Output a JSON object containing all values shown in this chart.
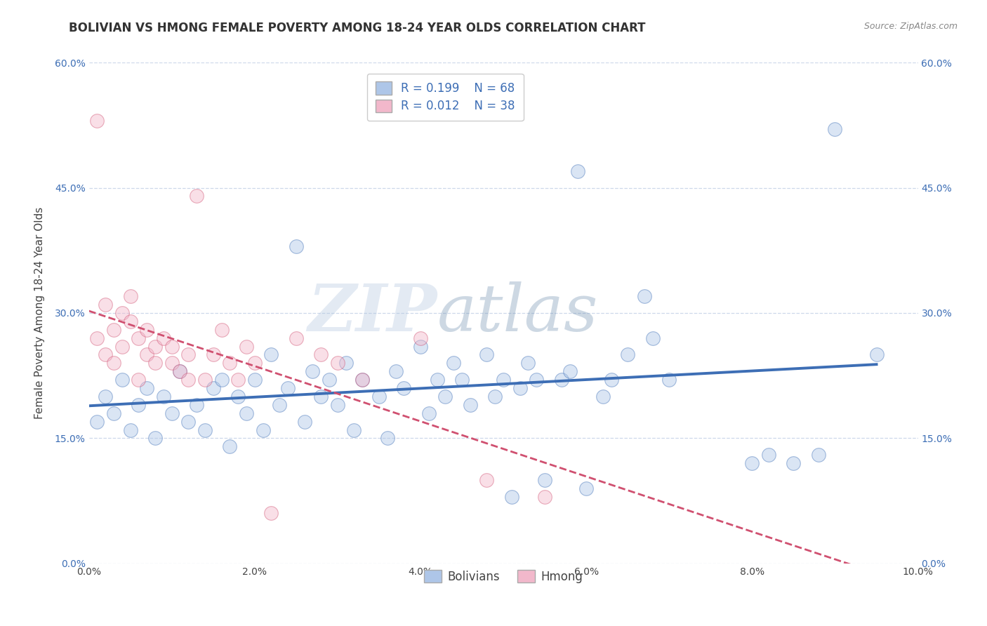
{
  "title": "BOLIVIAN VS HMONG FEMALE POVERTY AMONG 18-24 YEAR OLDS CORRELATION CHART",
  "source_text": "Source: ZipAtlas.com",
  "ylabel": "Female Poverty Among 18-24 Year Olds",
  "xlabel": "",
  "xlim": [
    0.0,
    0.1
  ],
  "ylim": [
    0.0,
    0.6
  ],
  "yticks": [
    0.0,
    0.15,
    0.3,
    0.45,
    0.6
  ],
  "xticks": [
    0.0,
    0.02,
    0.04,
    0.06,
    0.08,
    0.1
  ],
  "xtick_labels": [
    "0.0%",
    "2.0%",
    "4.0%",
    "6.0%",
    "8.0%",
    "10.0%"
  ],
  "ytick_labels": [
    "0.0%",
    "15.0%",
    "30.0%",
    "45.0%",
    "60.0%"
  ],
  "watermark_zip": "ZIP",
  "watermark_atlas": "atlas",
  "bolivians_color": "#aec6e8",
  "hmong_color": "#f2b8cb",
  "bolivians_line_color": "#3d6eb5",
  "hmong_line_color": "#d05070",
  "legend_R_bolivians": "R = 0.199",
  "legend_N_bolivians": "N = 68",
  "legend_R_hmong": "R = 0.012",
  "legend_N_hmong": "N = 38",
  "bolivians_R": 0.199,
  "hmong_R": 0.012,
  "bolivians_x": [
    0.001,
    0.002,
    0.003,
    0.004,
    0.005,
    0.006,
    0.007,
    0.008,
    0.009,
    0.01,
    0.011,
    0.012,
    0.013,
    0.014,
    0.015,
    0.016,
    0.017,
    0.018,
    0.019,
    0.02,
    0.021,
    0.022,
    0.023,
    0.024,
    0.025,
    0.026,
    0.027,
    0.028,
    0.029,
    0.03,
    0.031,
    0.032,
    0.033,
    0.035,
    0.036,
    0.037,
    0.038,
    0.04,
    0.041,
    0.042,
    0.043,
    0.044,
    0.045,
    0.046,
    0.048,
    0.049,
    0.05,
    0.051,
    0.052,
    0.053,
    0.054,
    0.055,
    0.057,
    0.058,
    0.059,
    0.06,
    0.062,
    0.063,
    0.065,
    0.067,
    0.068,
    0.07,
    0.08,
    0.082,
    0.085,
    0.088,
    0.09,
    0.095
  ],
  "bolivians_y": [
    0.17,
    0.2,
    0.18,
    0.22,
    0.16,
    0.19,
    0.21,
    0.15,
    0.2,
    0.18,
    0.23,
    0.17,
    0.19,
    0.16,
    0.21,
    0.22,
    0.14,
    0.2,
    0.18,
    0.22,
    0.16,
    0.25,
    0.19,
    0.21,
    0.38,
    0.17,
    0.23,
    0.2,
    0.22,
    0.19,
    0.24,
    0.16,
    0.22,
    0.2,
    0.15,
    0.23,
    0.21,
    0.26,
    0.18,
    0.22,
    0.2,
    0.24,
    0.22,
    0.19,
    0.25,
    0.2,
    0.22,
    0.08,
    0.21,
    0.24,
    0.22,
    0.1,
    0.22,
    0.23,
    0.47,
    0.09,
    0.2,
    0.22,
    0.25,
    0.32,
    0.27,
    0.22,
    0.12,
    0.13,
    0.12,
    0.13,
    0.52,
    0.25
  ],
  "hmong_x": [
    0.001,
    0.001,
    0.002,
    0.002,
    0.003,
    0.003,
    0.004,
    0.004,
    0.005,
    0.005,
    0.006,
    0.006,
    0.007,
    0.007,
    0.008,
    0.008,
    0.009,
    0.01,
    0.01,
    0.011,
    0.012,
    0.012,
    0.013,
    0.014,
    0.015,
    0.016,
    0.017,
    0.018,
    0.019,
    0.02,
    0.022,
    0.025,
    0.028,
    0.03,
    0.033,
    0.04,
    0.048,
    0.055
  ],
  "hmong_y": [
    0.53,
    0.27,
    0.31,
    0.25,
    0.28,
    0.24,
    0.3,
    0.26,
    0.29,
    0.32,
    0.27,
    0.22,
    0.25,
    0.28,
    0.24,
    0.26,
    0.27,
    0.24,
    0.26,
    0.23,
    0.22,
    0.25,
    0.44,
    0.22,
    0.25,
    0.28,
    0.24,
    0.22,
    0.26,
    0.24,
    0.06,
    0.27,
    0.25,
    0.24,
    0.22,
    0.27,
    0.1,
    0.08
  ],
  "background_color": "#ffffff",
  "grid_color": "#c8d4e8",
  "title_fontsize": 12,
  "axis_label_fontsize": 11,
  "tick_fontsize": 10,
  "legend_fontsize": 12,
  "marker_size": 200,
  "marker_alpha": 0.45,
  "marker_edge_width": 0.8
}
